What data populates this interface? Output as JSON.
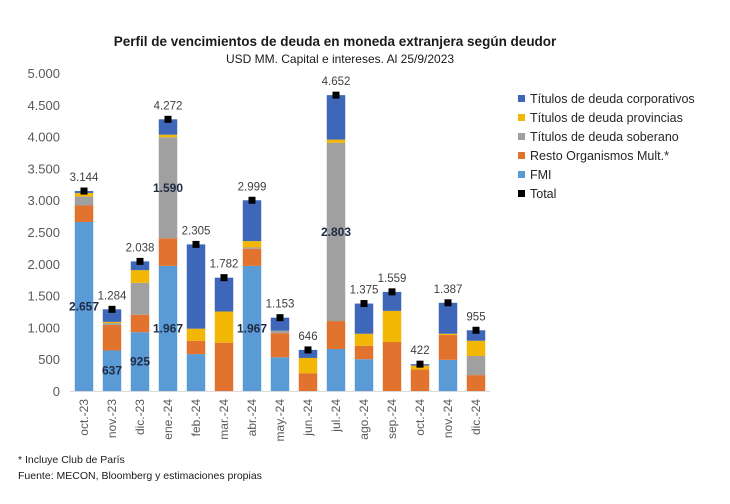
{
  "chart_data": {
    "type": "bar",
    "stacked": true,
    "title": "Perfil de vencimientos de deuda en moneda extranjera según deudor",
    "subtitle": "USD MM. Capital e intereses. Al 25/9/2023",
    "xlabel": "",
    "ylabel": "",
    "ylim": [
      0,
      5000
    ],
    "yticks": [
      0,
      500,
      1000,
      1500,
      2000,
      2500,
      3000,
      3500,
      4000,
      4500,
      5000
    ],
    "ytick_labels": [
      "0",
      "500",
      "1.000",
      "1.500",
      "2.000",
      "2.500",
      "3.000",
      "3.500",
      "4.000",
      "4.500",
      "5.000"
    ],
    "grid": false,
    "legend_position": "right",
    "categories": [
      "oct.-23",
      "nov.-23",
      "dic.-23",
      "ene.-24",
      "feb.-24",
      "mar.-24",
      "abr.-24",
      "may.-24",
      "jun.-24",
      "jul.-24",
      "ago.-24",
      "sep.-24",
      "oct.-24",
      "nov.-24",
      "dic.-24"
    ],
    "series": [
      {
        "name": "FMI",
        "color": "#5B9BD5",
        "values": [
          2657,
          637,
          925,
          1967,
          580,
          0,
          1967,
          530,
          0,
          660,
          500,
          0,
          0,
          490,
          0
        ]
      },
      {
        "name": "Resto Organismos Mult.*",
        "color": "#E2732F",
        "values": [
          260,
          400,
          275,
          433,
          210,
          760,
          270,
          380,
          280,
          440,
          210,
          770,
          340,
          390,
          250
        ]
      },
      {
        "name": "Títulos de deuda soberano",
        "color": "#A0A0A0",
        "values": [
          140,
          30,
          500,
          1590,
          0,
          0,
          20,
          40,
          0,
          2803,
          0,
          0,
          0,
          0,
          300
        ]
      },
      {
        "name": "Títulos de deuda provincias",
        "color": "#F2B705",
        "values": [
          57,
          20,
          200,
          40,
          190,
          490,
          100,
          0,
          240,
          50,
          190,
          490,
          60,
          20,
          240
        ]
      },
      {
        "name": "Títulos de deuda corporativos",
        "color": "#3F67B9",
        "values": [
          30,
          197,
          138,
          242,
          1325,
          532,
          642,
          203,
          126,
          699,
          475,
          299,
          22,
          487,
          165
        ]
      }
    ],
    "totals": {
      "name": "Total",
      "color": "#000000",
      "values": [
        3144,
        1284,
        2038,
        4272,
        2305,
        1782,
        2999,
        1153,
        646,
        4652,
        1375,
        1559,
        422,
        1387,
        955
      ]
    },
    "total_labels": [
      "3.144",
      "1.284",
      "2.038",
      "4.272",
      "2.305",
      "1.782",
      "2.999",
      "1.153",
      "646",
      "4.652",
      "1.375",
      "1.559",
      "422",
      "1.387",
      "955"
    ],
    "segment_labels": [
      {
        "category_index": 0,
        "series": "FMI",
        "text": "2.657"
      },
      {
        "category_index": 1,
        "series": "FMI",
        "text": "637"
      },
      {
        "category_index": 2,
        "series": "FMI",
        "text": "925"
      },
      {
        "category_index": 3,
        "series": "FMI",
        "text": "1.967"
      },
      {
        "category_index": 3,
        "series": "Títulos de deuda soberano",
        "text": "1.590"
      },
      {
        "category_index": 6,
        "series": "FMI",
        "text": "1.967"
      },
      {
        "category_index": 9,
        "series": "Títulos de deuda soberano",
        "text": "2.803"
      }
    ],
    "legend": [
      "Títulos de deuda corporativos",
      "Títulos de deuda provincias",
      "Títulos de deuda soberano",
      "Resto Organismos Mult.*",
      "FMI",
      "Total"
    ]
  },
  "footnotes": {
    "note": "* Incluye Club de París",
    "source": "Fuente: MECON, Bloomberg y estimaciones propias"
  }
}
